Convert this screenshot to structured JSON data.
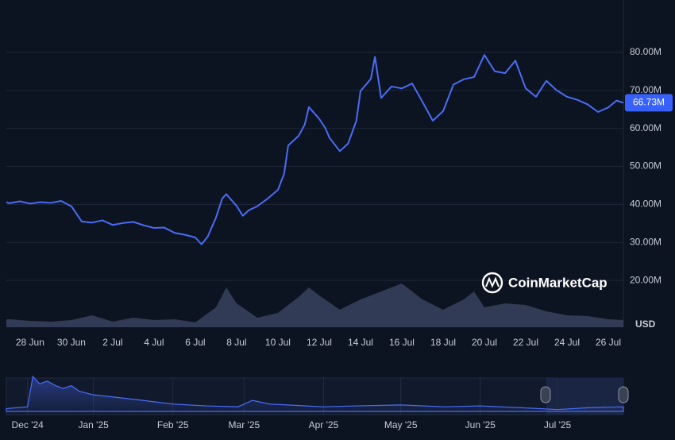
{
  "chart_data": [
    {
      "type": "line",
      "color": "#4a6cf7",
      "x": [
        26.85,
        27,
        27.5,
        28,
        28.5,
        29,
        29.5,
        30,
        30.5,
        31,
        31.5,
        32,
        32.5,
        33,
        33.5,
        34,
        34.5,
        35,
        35.5,
        36,
        36.3,
        36.6,
        37,
        37.3,
        37.5,
        38,
        38.3,
        38.6,
        39,
        39.5,
        40,
        40.3,
        40.5,
        41,
        41.3,
        41.5,
        42,
        42.3,
        42.5,
        43,
        43.4,
        43.8,
        44,
        44.5,
        44.7,
        45,
        45.5,
        46,
        46.5,
        47,
        47.5,
        48,
        48.5,
        49,
        49.5,
        50,
        50.5,
        51,
        51.5,
        52,
        52.5,
        53,
        53.5,
        54,
        54.5,
        55,
        55.5,
        56,
        56.4,
        56.73
      ],
      "values": [
        40600000,
        40300000,
        40800000,
        40200000,
        40600000,
        40400000,
        40900000,
        39500000,
        35500000,
        35200000,
        35800000,
        34600000,
        35100000,
        35400000,
        34500000,
        33800000,
        33900000,
        32500000,
        32000000,
        31300000,
        29500000,
        31500000,
        36500000,
        41500000,
        42700000,
        39600000,
        37000000,
        38500000,
        39500000,
        41500000,
        43800000,
        48000000,
        55500000,
        58000000,
        61000000,
        65600000,
        62500000,
        60000000,
        57500000,
        54000000,
        56000000,
        62000000,
        69800000,
        73000000,
        78800000,
        68000000,
        71000000,
        70500000,
        71800000,
        67000000,
        62000000,
        64500000,
        71500000,
        72900000,
        73500000,
        79300000,
        75000000,
        74500000,
        77800000,
        70500000,
        68300000,
        72500000,
        70000000,
        68300000,
        67500000,
        66300000,
        64300000,
        65500000,
        67300000,
        66730000
      ],
      "xlim": [
        26.85,
        56.73
      ],
      "xticks": [
        {
          "value": 28,
          "label": "28 Jun"
        },
        {
          "value": 30,
          "label": "30 Jun"
        },
        {
          "value": 32,
          "label": "2 Jul"
        },
        {
          "value": 34,
          "label": "4 Jul"
        },
        {
          "value": 36,
          "label": "6 Jul"
        },
        {
          "value": 38,
          "label": "8 Jul"
        },
        {
          "value": 40,
          "label": "10 Jul"
        },
        {
          "value": 42,
          "label": "12 Jul"
        },
        {
          "value": 44,
          "label": "14 Jul"
        },
        {
          "value": 46,
          "label": "16 Jul"
        },
        {
          "value": 48,
          "label": "18 Jul"
        },
        {
          "value": 50,
          "label": "20 Jul"
        },
        {
          "value": 52,
          "label": "22 Jul"
        },
        {
          "value": 54,
          "label": "24 Jul"
        },
        {
          "value": 56,
          "label": "26 Jul"
        }
      ],
      "ylim": [
        7700000,
        93750000
      ],
      "yticks": [
        {
          "value": 20000000,
          "label": "20.00M"
        },
        {
          "value": 30000000,
          "label": "30.00M"
        },
        {
          "value": 40000000,
          "label": "40.00M"
        },
        {
          "value": 50000000,
          "label": "50.00M"
        },
        {
          "value": 60000000,
          "label": "60.00M"
        },
        {
          "value": 70000000,
          "label": "70.00M"
        },
        {
          "value": 80000000,
          "label": "80.00M"
        }
      ],
      "grid": true,
      "y_unit": "USD",
      "last_price": {
        "value": 66730000,
        "label": "66.73M"
      },
      "watermark": "CoinMarketCap"
    },
    {
      "type": "area",
      "color": "#39425e",
      "x": [
        26.85,
        27,
        28,
        29,
        30,
        31,
        32,
        33,
        34,
        35,
        36,
        37,
        37.5,
        38,
        39,
        40,
        41,
        41.5,
        42,
        43,
        44,
        45,
        46,
        47,
        48,
        49,
        49.5,
        50,
        51,
        52,
        53,
        54,
        55,
        56,
        56.73
      ],
      "values": [
        10,
        10,
        8,
        7,
        9,
        15,
        7,
        12,
        9,
        10,
        6,
        25,
        50,
        30,
        12,
        18,
        38,
        50,
        40,
        22,
        35,
        45,
        55,
        35,
        22,
        35,
        45,
        25,
        30,
        28,
        20,
        15,
        14,
        10,
        9
      ],
      "xlim": [
        26.85,
        56.73
      ]
    },
    {
      "type": "area",
      "color": "#4a6cf7",
      "x": [
        -0.28,
        0,
        0.07,
        0.16,
        0.26,
        0.37,
        0.47,
        0.58,
        0.68,
        0.87,
        1.21,
        1.52,
        1.92,
        2.36,
        2.78,
        2.97,
        3.2,
        3.91,
        4.35,
        4.93,
        5.51,
        5.98,
        6.77,
        7.0,
        7.4,
        7.87
      ],
      "values": [
        3,
        5,
        38,
        30,
        33,
        28,
        25,
        28,
        22,
        18,
        15,
        12,
        8,
        6,
        5,
        12,
        8,
        5,
        6,
        7,
        5,
        6,
        3,
        2,
        4,
        5
      ],
      "xlim": [
        -0.28,
        7.87
      ],
      "xticks": [
        {
          "value": 0,
          "label": "Dec '24"
        },
        {
          "value": 0.87,
          "label": "Jan '25"
        },
        {
          "value": 1.92,
          "label": "Feb '25"
        },
        {
          "value": 2.86,
          "label": "Mar '25"
        },
        {
          "value": 3.91,
          "label": "Apr '25"
        },
        {
          "value": 4.93,
          "label": "May '25"
        },
        {
          "value": 5.98,
          "label": "Jun '25"
        },
        {
          "value": 7.0,
          "label": "Jul '25"
        }
      ]
    }
  ]
}
